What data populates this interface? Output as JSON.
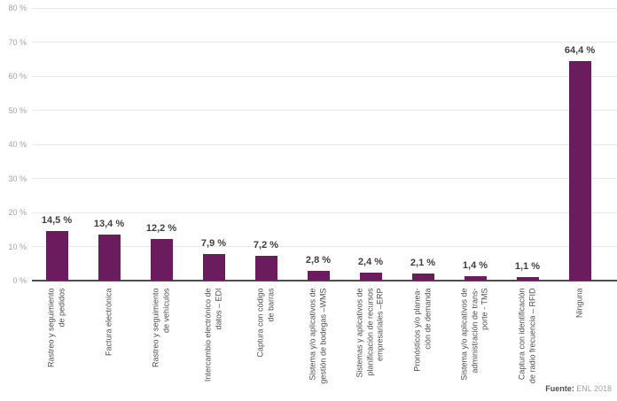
{
  "chart_data": {
    "type": "bar",
    "categories": [
      "Rastreo y seguimiento de pedidos",
      "Factura electrónica",
      "Rastreo y seguimiento de vehículos",
      "Intercambio electrónico de datos – EDI",
      "Captura con código de barras",
      "Sistema y/o aplicativos de gestión de bodegas –WMS",
      "Sistemas y aplicativos de planificación de recursos empresariales –ERP",
      "Pronósticos y/o planeación de demanda",
      "Sistema y/o aplicativos de administración de transporte - TMS",
      "Captura con identificación de radio frecuencia – RFID",
      "Ninguna"
    ],
    "category_lines": [
      [
        "Rastreo y seguimiento",
        "de pedidos"
      ],
      [
        "Factura electrónica"
      ],
      [
        "Rastreo y seguimiento",
        "de vehículos"
      ],
      [
        "Intercambio electrónico de",
        "datos – EDI"
      ],
      [
        "Captura con código",
        "de barras"
      ],
      [
        "Sistema y/o aplicativos de",
        "gestión de bodegas –WMS"
      ],
      [
        "Sistemas y aplicativos de",
        "planificación de recursos",
        "empresariales –ERP"
      ],
      [
        "Pronósticos y/o planea-",
        "ción de demanda"
      ],
      [
        "Sistema y/o aplicativos de",
        "administración de trans-",
        "porte - TMS"
      ],
      [
        "Captura con identificación",
        "de radio frecuencia – RFID"
      ],
      [
        "Ninguna"
      ]
    ],
    "values": [
      14.5,
      13.4,
      12.2,
      7.9,
      7.2,
      2.8,
      2.4,
      2.1,
      1.4,
      1.1,
      64.4
    ],
    "value_labels": [
      "14,5 %",
      "13,4 %",
      "12,2 %",
      "7,9 %",
      "7,2 %",
      "2,8 %",
      "2,4 %",
      "2,1 %",
      "1,4 %",
      "1,1 %",
      "64,4 %"
    ],
    "y_ticks": [
      "0 %",
      "10 %",
      "20 %",
      "30 %",
      "40 %",
      "50 %",
      "60 %",
      "70 %",
      "80 %"
    ],
    "ylim": [
      0,
      80
    ],
    "grid": true,
    "legend": "none",
    "bar_color": "#6b1c5e",
    "source_label": "Fuente:",
    "source_value": " ENL 2018"
  }
}
